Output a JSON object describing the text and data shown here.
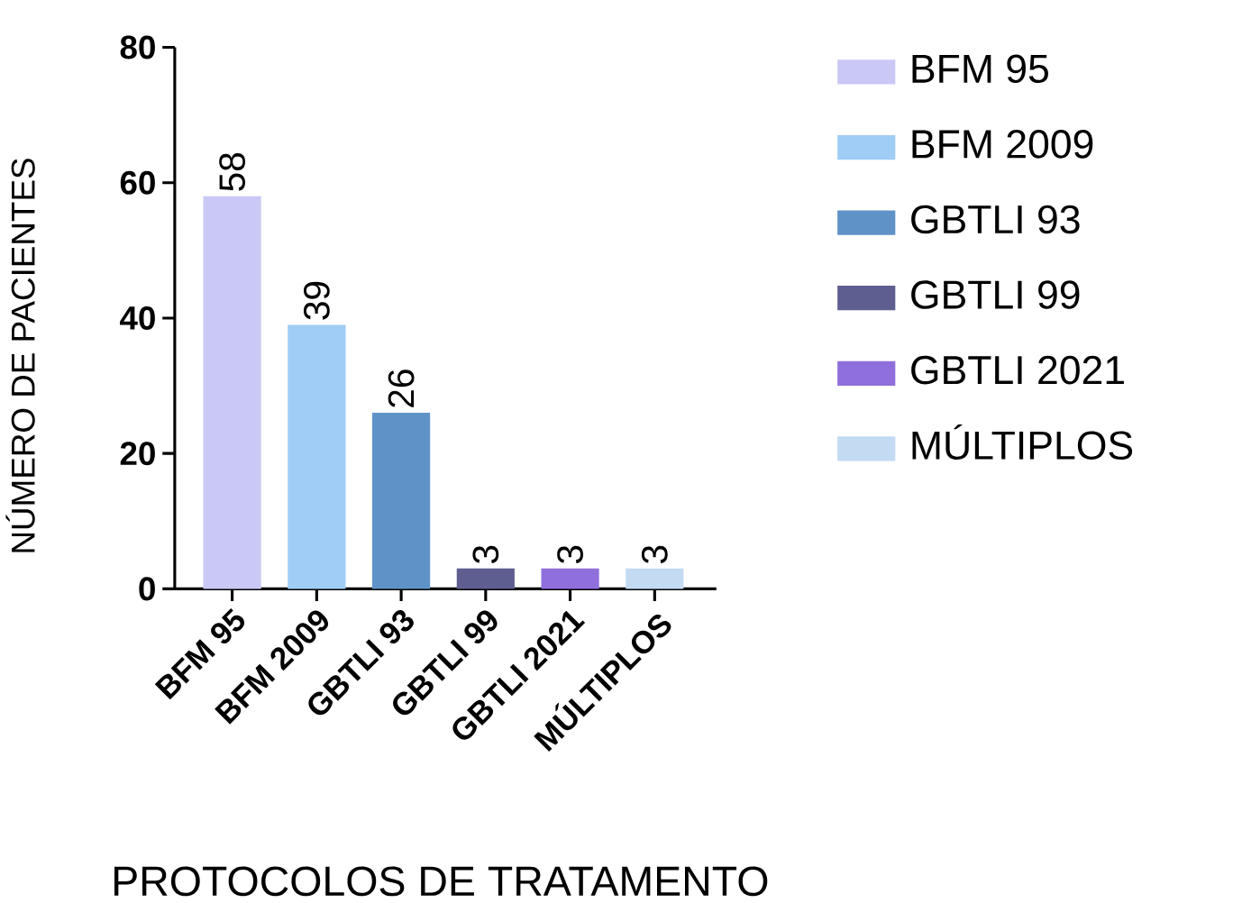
{
  "chart_data": {
    "type": "bar",
    "xlabel": "PROTOCOLOS DE TRATAMENTO",
    "ylabel": "NÚMERO DE PACIENTES",
    "categories": [
      "BFM 95",
      "BFM 2009",
      "GBTLI 93",
      "GBTLI 99",
      "GBTLI 2021",
      "MÚLTIPLOS"
    ],
    "series": [
      {
        "name": "BFM 95",
        "color": "#cac9f5",
        "values": [
          58,
          null,
          null,
          null,
          null,
          null
        ]
      },
      {
        "name": "BFM 2009",
        "color": "#9fcdf5",
        "values": [
          null,
          39,
          null,
          null,
          null,
          null
        ]
      },
      {
        "name": "GBTLI 93",
        "color": "#5f93c8",
        "values": [
          null,
          null,
          26,
          null,
          null,
          null
        ]
      },
      {
        "name": "GBTLI 99",
        "color": "#5e5e91",
        "values": [
          null,
          null,
          null,
          3,
          null,
          null
        ]
      },
      {
        "name": "GBTLI 2021",
        "color": "#8f6fdb",
        "values": [
          null,
          null,
          null,
          null,
          3,
          null
        ]
      },
      {
        "name": "MÚLTIPLOS",
        "color": "#c3daf3",
        "values": [
          null,
          null,
          null,
          null,
          null,
          3
        ]
      }
    ],
    "ylim": [
      0,
      80
    ],
    "yticks": [
      0,
      20,
      40,
      60,
      80
    ],
    "grid": false,
    "legend": "right",
    "data_labels": true
  }
}
